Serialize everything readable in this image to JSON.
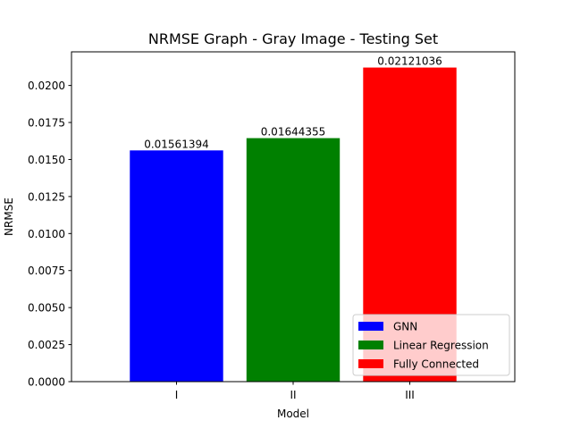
{
  "chart_data": {
    "type": "bar",
    "title": "NRMSE Graph - Gray Image - Testing Set",
    "xlabel": "Model",
    "ylabel": "NRMSE",
    "categories": [
      "I",
      "II",
      "III"
    ],
    "values": [
      0.01561394,
      0.01644355,
      0.02121036
    ],
    "data_labels": [
      "0.01561394",
      "0.01644355",
      "0.02121036"
    ],
    "colors": [
      "#0000ff",
      "#008000",
      "#ff0000"
    ],
    "yticks": [
      "0.0000",
      "0.0025",
      "0.0050",
      "0.0075",
      "0.0100",
      "0.0125",
      "0.0150",
      "0.0175",
      "0.0200"
    ],
    "ylim": [
      0,
      0.0222709
    ],
    "grid": false,
    "legend": {
      "placement": "lower-right",
      "entries": [
        {
          "label": "GNN",
          "color": "#0000ff"
        },
        {
          "label": "Linear Regression",
          "color": "#008000"
        },
        {
          "label": "Fully Connected",
          "color": "#ff0000"
        }
      ]
    }
  }
}
